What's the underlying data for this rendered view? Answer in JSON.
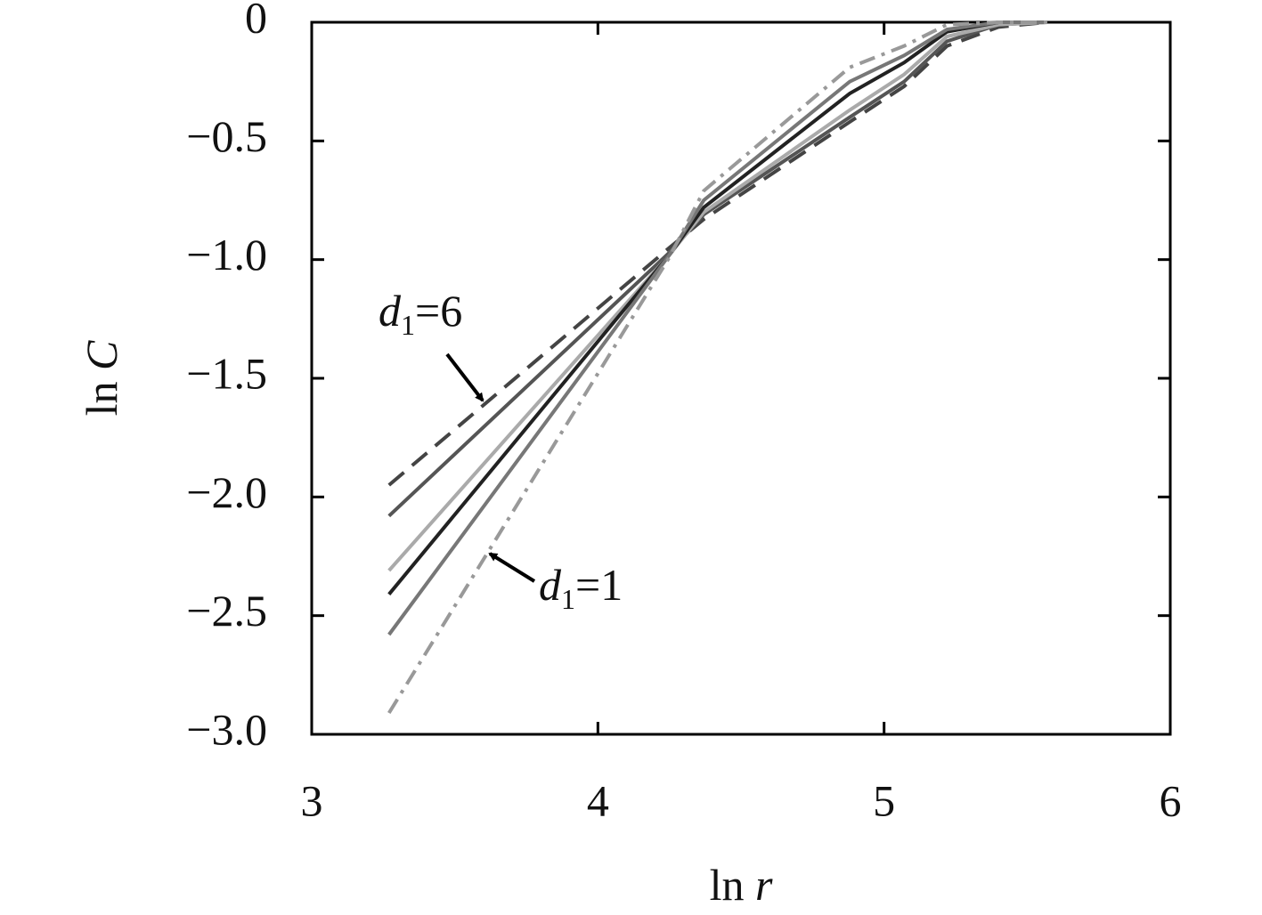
{
  "chart_data": {
    "type": "line",
    "y_label": {
      "fn": "ln",
      "var": "C"
    },
    "x_label": {
      "fn": "ln",
      "var": "r"
    },
    "x": [
      3.27,
      4.25,
      4.37,
      4.88,
      5.07,
      5.22,
      5.4,
      5.57
    ],
    "series": [
      {
        "color": "#444444",
        "dash": "dashed",
        "values": [
          -1.95,
          -0.95,
          -0.83,
          -0.42,
          -0.27,
          -0.1,
          -0.02,
          0
        ]
      },
      {
        "color": "#555555",
        "dash": "solid",
        "values": [
          -2.08,
          -0.97,
          -0.81,
          -0.4,
          -0.25,
          -0.08,
          -0.01,
          0
        ]
      },
      {
        "color": "#aaaaaa",
        "dash": "solid",
        "values": [
          -2.31,
          -0.98,
          -0.8,
          -0.37,
          -0.22,
          -0.06,
          -0.01,
          0
        ]
      },
      {
        "color": "#222222",
        "dash": "solid",
        "values": [
          -2.41,
          -0.98,
          -0.78,
          -0.3,
          -0.17,
          -0.04,
          0,
          0
        ]
      },
      {
        "color": "#777777",
        "dash": "solid",
        "values": [
          -2.58,
          -0.98,
          -0.75,
          -0.25,
          -0.14,
          -0.03,
          0,
          0
        ]
      },
      {
        "color": "#999999",
        "dash": "dashdot",
        "values": [
          -2.91,
          -0.99,
          -0.71,
          -0.19,
          -0.1,
          -0.01,
          0,
          0
        ]
      }
    ],
    "annotations": [
      {
        "var": "d",
        "sub": "1",
        "rest": "=6"
      },
      {
        "var": "d",
        "sub": "1",
        "rest": "=1"
      }
    ],
    "xlim": [
      3,
      6
    ],
    "ylim": [
      -3,
      0
    ],
    "xticks": [
      3,
      4,
      5,
      6
    ],
    "yticks": [
      0,
      {
        "value": -0.5,
        "label": "−0.5"
      },
      {
        "value": -1,
        "label": "−1.0"
      },
      {
        "value": -1.5,
        "label": "−1.5"
      },
      {
        "value": -2,
        "label": "−2.0"
      },
      {
        "value": -2.5,
        "label": "−2.5"
      },
      {
        "value": -3,
        "label": "−3.0"
      }
    ]
  }
}
